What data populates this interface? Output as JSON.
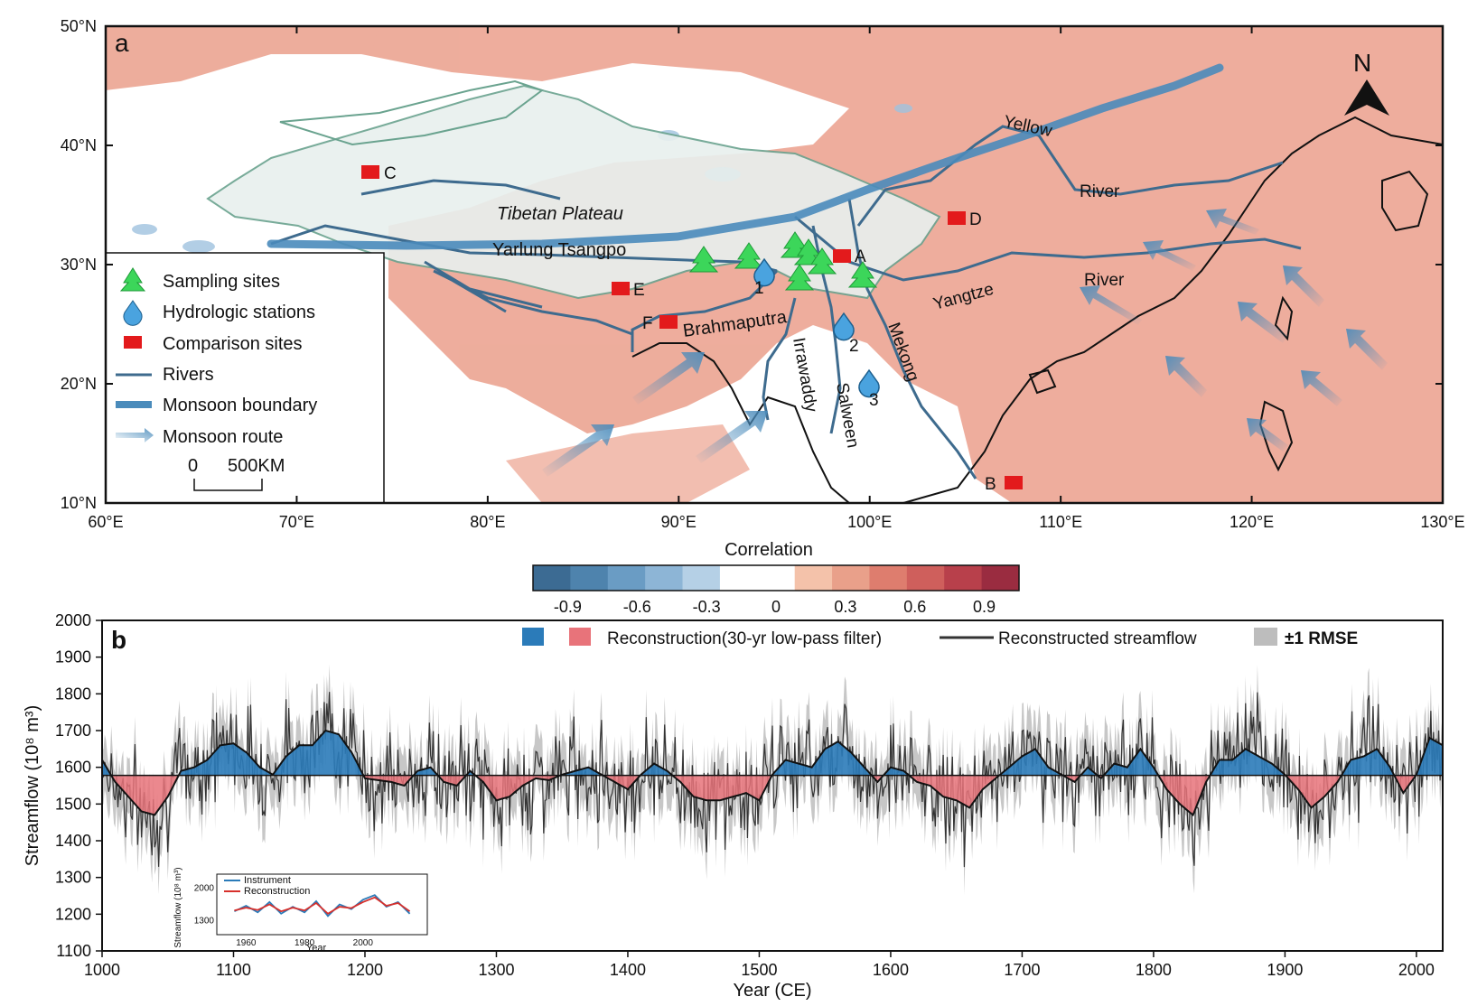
{
  "panel_a": {
    "panel_label": "a",
    "lat_ticks": [
      "10°N",
      "20°N",
      "30°N",
      "40°N",
      "50°N"
    ],
    "lon_ticks": [
      "60°E",
      "70°E",
      "80°E",
      "90°E",
      "100°E",
      "110°E",
      "120°E",
      "130°E"
    ],
    "north_label": "N",
    "place_labels": {
      "tibetan_plateau": "Tibetan Plateau",
      "yarlung": "Yarlung Tsangpo",
      "brahmaputra": "Brahmaputra",
      "irrawaddy": "Irrawaddy",
      "salween": "Salween",
      "mekong": "Mekong",
      "yangtze": "Yangtze",
      "yangtze_river": "River",
      "yellow": "Yellow",
      "yellow_river": "River"
    },
    "sites": [
      {
        "id": "A",
        "label": "A"
      },
      {
        "id": "B",
        "label": "B"
      },
      {
        "id": "C",
        "label": "C"
      },
      {
        "id": "D",
        "label": "D"
      },
      {
        "id": "E",
        "label": "E"
      },
      {
        "id": "F",
        "label": "F"
      }
    ],
    "stations": [
      "1",
      "2",
      "3"
    ],
    "legend": {
      "sampling": "Sampling sites",
      "hydro": "Hydrologic stations",
      "comparison": "Comparison sites",
      "rivers": "Rivers",
      "boundary": "Monsoon boundary",
      "route": "Monsoon route",
      "scale_zero": "0",
      "scale_dist": "500KM"
    },
    "colors": {
      "positive": "#e8927c",
      "plateau": "#e8f0ee",
      "river": "#3e6b8e",
      "boundary": "#4a8bbb",
      "site": "#e31a1c",
      "tree": "#3cd65a"
    }
  },
  "colorbar": {
    "title": "Correlation",
    "ticks": [
      "-0.9",
      "-0.6",
      "-0.3",
      "0",
      "0.3",
      "0.6",
      "0.9"
    ],
    "colors": [
      "#3c6b93",
      "#4e83ad",
      "#6a9cc4",
      "#8db5d6",
      "#b5d0e6",
      "#ffffff",
      "#ffffff",
      "#f4c2aa",
      "#e9a08a",
      "#de7d6e",
      "#cf5f5c",
      "#b8404b",
      "#9a2c40"
    ]
  },
  "chart_data": {
    "type": "line",
    "panel_label": "b",
    "xlabel": "Year (CE)",
    "ylabel": "Streamflow (10⁸ m³)",
    "xlim": [
      1000,
      2020
    ],
    "ylim": [
      1100,
      2000
    ],
    "x_ticks": [
      "1000",
      "1100",
      "1200",
      "1300",
      "1400",
      "1500",
      "1600",
      "1700",
      "1800",
      "1900",
      "2000"
    ],
    "y_ticks": [
      "1100",
      "1200",
      "1300",
      "1400",
      "1500",
      "1600",
      "1700",
      "1800",
      "1900",
      "2000"
    ],
    "mean": 1578,
    "legend": {
      "lowpass": "Reconstruction(30-yr low-pass filter)",
      "recon": "Reconstructed streamflow",
      "rmse": "±1 RMSE"
    },
    "colors": {
      "above": "#2b7bb9",
      "below": "#e8737a",
      "recon": "#333333",
      "rmse": "#bdbdbd"
    },
    "lowpass": {
      "x": [
        1000,
        1010,
        1020,
        1030,
        1040,
        1050,
        1060,
        1070,
        1080,
        1090,
        1100,
        1110,
        1120,
        1130,
        1140,
        1150,
        1160,
        1170,
        1180,
        1190,
        1200,
        1210,
        1220,
        1230,
        1240,
        1250,
        1260,
        1270,
        1280,
        1290,
        1300,
        1310,
        1320,
        1330,
        1340,
        1350,
        1360,
        1370,
        1380,
        1390,
        1400,
        1410,
        1420,
        1430,
        1440,
        1450,
        1460,
        1470,
        1480,
        1490,
        1500,
        1510,
        1520,
        1530,
        1540,
        1550,
        1560,
        1570,
        1580,
        1590,
        1600,
        1610,
        1620,
        1630,
        1640,
        1650,
        1660,
        1670,
        1680,
        1690,
        1700,
        1710,
        1720,
        1730,
        1740,
        1750,
        1760,
        1770,
        1780,
        1790,
        1800,
        1810,
        1820,
        1830,
        1840,
        1850,
        1860,
        1870,
        1880,
        1890,
        1900,
        1910,
        1920,
        1930,
        1940,
        1950,
        1960,
        1970,
        1980,
        1990,
        2000,
        2010,
        2020
      ],
      "y": [
        1620,
        1560,
        1520,
        1480,
        1470,
        1520,
        1590,
        1600,
        1620,
        1660,
        1665,
        1640,
        1600,
        1580,
        1630,
        1660,
        1660,
        1700,
        1690,
        1640,
        1570,
        1565,
        1560,
        1550,
        1590,
        1600,
        1560,
        1550,
        1590,
        1560,
        1510,
        1520,
        1550,
        1570,
        1565,
        1580,
        1590,
        1600,
        1580,
        1560,
        1540,
        1580,
        1610,
        1590,
        1560,
        1520,
        1510,
        1510,
        1520,
        1530,
        1510,
        1580,
        1620,
        1610,
        1600,
        1650,
        1670,
        1640,
        1600,
        1560,
        1600,
        1590,
        1560,
        1550,
        1520,
        1510,
        1490,
        1540,
        1570,
        1600,
        1630,
        1650,
        1600,
        1580,
        1560,
        1600,
        1570,
        1610,
        1600,
        1650,
        1600,
        1540,
        1500,
        1470,
        1560,
        1620,
        1620,
        1650,
        1630,
        1610,
        1580,
        1540,
        1490,
        1520,
        1560,
        1620,
        1630,
        1650,
        1600,
        1530,
        1580,
        1680,
        1660
      ]
    },
    "recon_note": "",
    "inset": {
      "legend": [
        "Instrument",
        "Reconstruction"
      ],
      "colors": [
        "#2b7bb9",
        "#d7302c"
      ],
      "x_ticks": [
        "1960",
        "1980",
        "2000"
      ],
      "y_ticks": [
        "1300",
        "2000"
      ],
      "xlabel": "Year",
      "ylabel": "Streamflow (10⁸ m³)",
      "instrument": {
        "x": [
          1956,
          1960,
          1964,
          1968,
          1972,
          1976,
          1980,
          1984,
          1988,
          1992,
          1996,
          2000,
          2004,
          2008,
          2012,
          2016
        ],
        "y": [
          1500,
          1620,
          1480,
          1700,
          1450,
          1600,
          1480,
          1720,
          1400,
          1650,
          1550,
          1750,
          1850,
          1600,
          1700,
          1450
        ]
      },
      "reconstruction": {
        "x": [
          1956,
          1960,
          1964,
          1968,
          1972,
          1976,
          1980,
          1984,
          1988,
          1992,
          1996,
          2000,
          2004,
          2008,
          2012,
          2016
        ],
        "y": [
          1520,
          1580,
          1530,
          1650,
          1500,
          1580,
          1520,
          1680,
          1450,
          1600,
          1570,
          1700,
          1800,
          1620,
          1680,
          1500
        ]
      }
    }
  }
}
